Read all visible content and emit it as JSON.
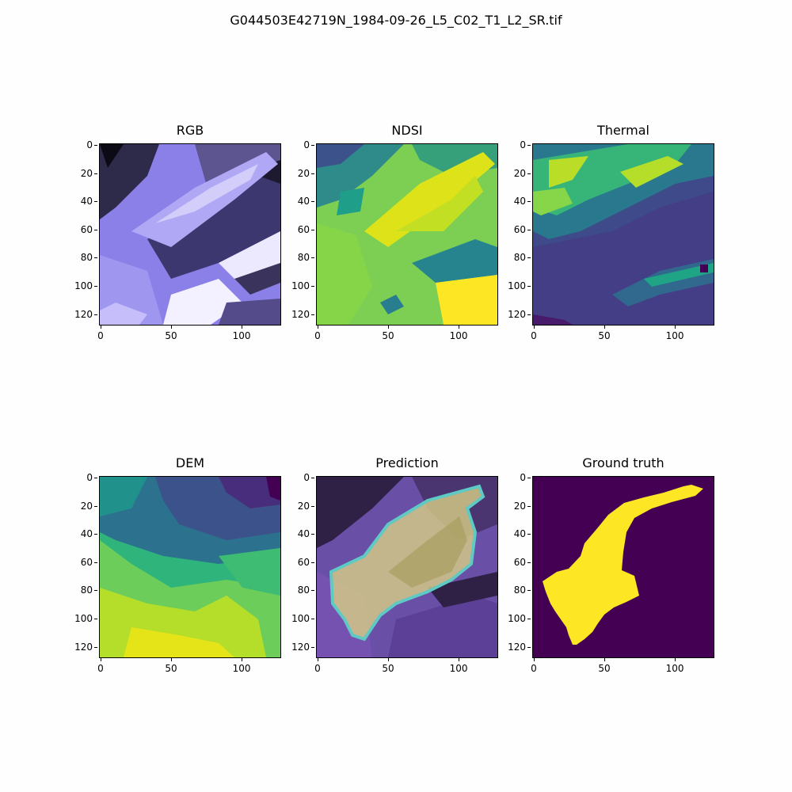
{
  "figure": {
    "title": "G044503E42719N_1984-09-26_L5_C02_T1_L2_SR.tif",
    "panels": [
      {
        "title": "RGB"
      },
      {
        "title": "NDSI"
      },
      {
        "title": "Thermal"
      },
      {
        "title": "DEM"
      },
      {
        "title": "Prediction"
      },
      {
        "title": "Ground truth"
      }
    ],
    "y_ticks": [
      "0",
      "20",
      "40",
      "60",
      "80",
      "100",
      "120"
    ],
    "x_ticks": [
      "0",
      "50",
      "100"
    ]
  },
  "colors": {
    "viridis_dark": "#440154",
    "viridis_blue": "#31688e",
    "viridis_green": "#35b779",
    "viridis_yellow": "#fde725",
    "rgb_lavender": "#9f97f0"
  }
}
